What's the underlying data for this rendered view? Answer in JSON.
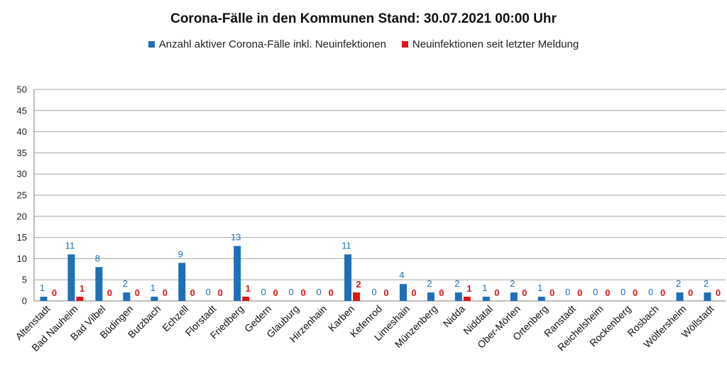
{
  "chart_data": {
    "type": "bar",
    "title": "Corona-Fälle in den Kommunen Stand: 30.07.2021 00:00 Uhr",
    "xlabel": "",
    "ylabel": "",
    "ylim": [
      0,
      50
    ],
    "yticks": [
      0,
      5,
      10,
      15,
      20,
      25,
      30,
      35,
      40,
      45,
      50
    ],
    "grid": true,
    "legend_position": "top",
    "categories": [
      "Altenstadt",
      "Bad Nauheim",
      "Bad Vilbel",
      "Büdingen",
      "Butzbach",
      "Echzell",
      "Florstadt",
      "Friedberg",
      "Gedern",
      "Glauburg",
      "Hirzenhain",
      "Karben",
      "Kefenrod",
      "Limeshain",
      "Münzenberg",
      "Nidda",
      "Niddatal",
      "Ober-Mörlen",
      "Ortenberg",
      "Ranstadt",
      "Reichelsheim",
      "Rockenberg",
      "Rosbach",
      "Wölfersheim",
      "Wöllstadt"
    ],
    "series": [
      {
        "name": "Anzahl aktiver Corona-Fälle inkl. Neuinfektionen",
        "color": "#1f6fb8",
        "values": [
          1,
          11,
          8,
          2,
          1,
          9,
          0,
          13,
          0,
          0,
          0,
          11,
          0,
          4,
          2,
          2,
          1,
          2,
          1,
          0,
          0,
          0,
          0,
          2,
          2
        ]
      },
      {
        "name": "Neuinfektionen seit letzter Meldung",
        "color": "#dd1515",
        "values": [
          0,
          1,
          0,
          0,
          0,
          0,
          0,
          1,
          0,
          0,
          0,
          2,
          0,
          0,
          0,
          1,
          0,
          0,
          0,
          0,
          0,
          0,
          0,
          0,
          0
        ]
      }
    ]
  }
}
